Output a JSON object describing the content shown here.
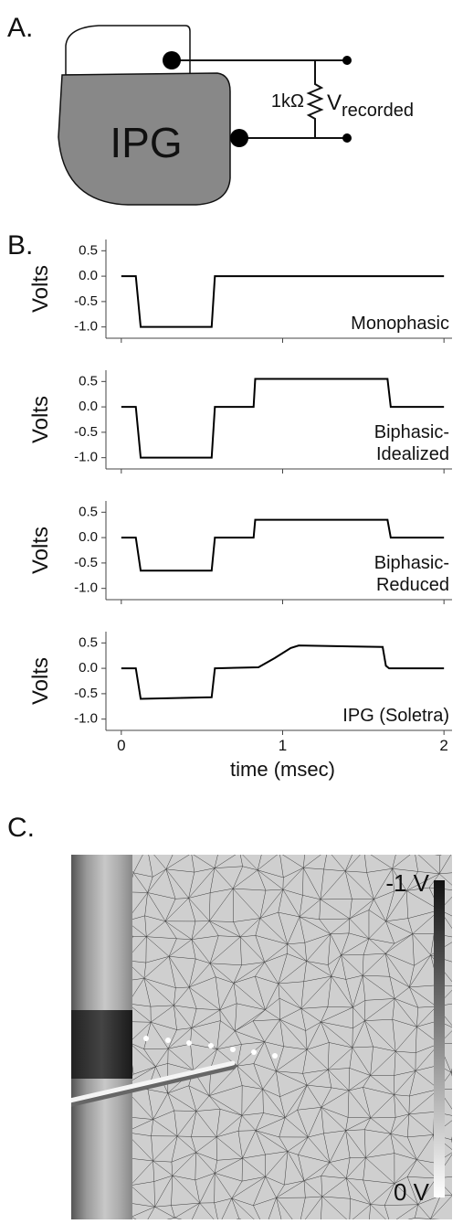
{
  "panels": {
    "a": "A.",
    "b": "B.",
    "c": "C."
  },
  "diagram": {
    "device": "IPG",
    "resistor": "1kΩ",
    "voltage": {
      "main": "V",
      "sub": "recorded"
    }
  },
  "render": {
    "max_label": "-1 V",
    "min_label": "0 V"
  },
  "chart_data": [
    {
      "type": "line",
      "ylabel": "Volts",
      "annotation": [
        "Monophasic"
      ],
      "color": "#000000",
      "x": [
        0,
        0.09,
        0.12,
        0.56,
        0.58,
        2
      ],
      "values": [
        0,
        0,
        -1,
        -1,
        0,
        0
      ],
      "xlim": [
        -0.05,
        2.05
      ],
      "xticks": [
        0,
        1,
        2
      ],
      "ylim": [
        -1.15,
        0.65
      ],
      "yticks": [
        {
          "value": 0.5,
          "label": "0.5"
        },
        {
          "value": 0,
          "label": "0.0"
        },
        {
          "value": -0.5,
          "label": "-0.5"
        },
        {
          "value": -1,
          "label": "-1.0"
        }
      ]
    },
    {
      "type": "line",
      "ylabel": "Volts",
      "annotation": [
        "Biphasic-",
        "Idealized"
      ],
      "color": "#000000",
      "x": [
        0,
        0.09,
        0.12,
        0.56,
        0.58,
        0.82,
        0.83,
        1.65,
        1.67,
        2
      ],
      "values": [
        0,
        0,
        -1,
        -1,
        0,
        0,
        0.55,
        0.55,
        0,
        0
      ],
      "xlim": [
        -0.05,
        2.05
      ],
      "xticks": [
        0,
        1,
        2
      ],
      "ylim": [
        -1.15,
        0.65
      ],
      "yticks": [
        {
          "value": 0.5,
          "label": "0.5"
        },
        {
          "value": 0,
          "label": "0.0"
        },
        {
          "value": -0.5,
          "label": "-0.5"
        },
        {
          "value": -1,
          "label": "-1.0"
        }
      ]
    },
    {
      "type": "line",
      "ylabel": "Volts",
      "annotation": [
        "Biphasic-",
        "Reduced"
      ],
      "color": "#000000",
      "x": [
        0,
        0.09,
        0.12,
        0.56,
        0.58,
        0.82,
        0.83,
        1.65,
        1.67,
        2
      ],
      "values": [
        0,
        0,
        -0.65,
        -0.65,
        0,
        0,
        0.35,
        0.35,
        0,
        0
      ],
      "xlim": [
        -0.05,
        2.05
      ],
      "xticks": [
        0,
        1,
        2
      ],
      "ylim": [
        -1.15,
        0.65
      ],
      "yticks": [
        {
          "value": 0.5,
          "label": "0.5"
        },
        {
          "value": 0,
          "label": "0.0"
        },
        {
          "value": -0.5,
          "label": "-0.5"
        },
        {
          "value": -1,
          "label": "-1.0"
        }
      ]
    },
    {
      "type": "line",
      "ylabel": "Volts",
      "annotation": [
        "IPG (Soletra)"
      ],
      "color": "#000000",
      "xlabel": "time (msec)",
      "x": [
        0,
        0.09,
        0.12,
        0.56,
        0.58,
        0.85,
        0.95,
        1.05,
        1.1,
        1.62,
        1.64,
        1.66,
        2
      ],
      "values": [
        0,
        0,
        -0.6,
        -0.57,
        0,
        0.02,
        0.2,
        0.4,
        0.45,
        0.42,
        0.05,
        0,
        0
      ],
      "xlim": [
        -0.05,
        2.05
      ],
      "xticks": [
        0,
        1,
        2
      ],
      "ylim": [
        -1.15,
        0.65
      ],
      "yticks": [
        {
          "value": 0.5,
          "label": "0.5"
        },
        {
          "value": 0,
          "label": "0.0"
        },
        {
          "value": -0.5,
          "label": "-0.5"
        },
        {
          "value": -1,
          "label": "-1.0"
        }
      ]
    }
  ]
}
